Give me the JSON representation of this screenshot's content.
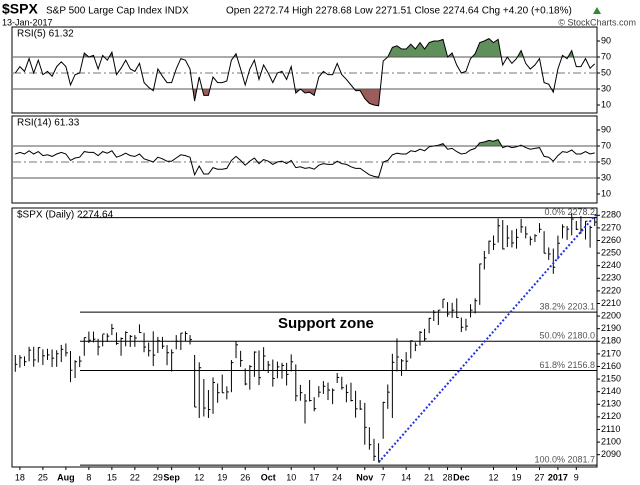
{
  "header": {
    "symbol": "$SPX",
    "name": "S&P 500 Large Cap Index INDX",
    "date": "13-Jan-2017",
    "quote": "Open 2272.74 High 2278.68 Low 2271.51 Close 2274.64 Chg +4.20 (+0.18%)",
    "credit": "© StockCharts.com"
  },
  "chart_data": [
    {
      "type": "line",
      "title": "RSI(5) 61.32",
      "color": "#000000",
      "ylim": [
        0,
        100
      ],
      "yticks": [
        90,
        70,
        50,
        30,
        10
      ],
      "overbought": 70,
      "midline": 50,
      "oversold": 30,
      "overbought_color": "#5f8f5a",
      "oversold_color": "#9b5c5a",
      "values": [
        50,
        58,
        52,
        68,
        50,
        66,
        48,
        52,
        46,
        58,
        64,
        58,
        35,
        48,
        50,
        75,
        70,
        72,
        55,
        72,
        66,
        76,
        48,
        56,
        66,
        55,
        52,
        62,
        38,
        32,
        28,
        55,
        46,
        38,
        38,
        55,
        68,
        66,
        55,
        15,
        45,
        22,
        22,
        45,
        38,
        38,
        40,
        66,
        74,
        55,
        35,
        55,
        66,
        42,
        60,
        50,
        38,
        50,
        52,
        42,
        58,
        25,
        30,
        25,
        26,
        22,
        45,
        52,
        48,
        48,
        62,
        48,
        42,
        35,
        28,
        28,
        18,
        12,
        10,
        9,
        65,
        70,
        82,
        84,
        80,
        80,
        86,
        80,
        88,
        80,
        88,
        90,
        90,
        92,
        70,
        75,
        60,
        50,
        52,
        68,
        74,
        88,
        90,
        93,
        88,
        92,
        60,
        70,
        62,
        68,
        78,
        62,
        55,
        60,
        68,
        38,
        36,
        26,
        55,
        72,
        68,
        78,
        58,
        58,
        68,
        56,
        61.32
      ]
    },
    {
      "type": "line",
      "title": "RSI(14) 61.33",
      "color": "#000000",
      "ylim": [
        0,
        100
      ],
      "yticks": [
        90,
        70,
        50,
        30,
        10
      ],
      "overbought": 70,
      "midline": 50,
      "oversold": 30,
      "overbought_color": "#5f8f5a",
      "oversold_color": "#9b5c5a",
      "values": [
        60,
        62,
        60,
        64,
        60,
        63,
        58,
        59,
        57,
        60,
        62,
        60,
        52,
        55,
        56,
        63,
        62,
        62,
        58,
        63,
        61,
        64,
        56,
        58,
        61,
        58,
        57,
        60,
        54,
        52,
        50,
        56,
        54,
        51,
        51,
        55,
        59,
        58,
        56,
        34,
        45,
        35,
        35,
        43,
        41,
        41,
        42,
        52,
        57,
        52,
        46,
        51,
        55,
        48,
        53,
        51,
        47,
        50,
        51,
        48,
        52,
        43,
        44,
        42,
        43,
        41,
        46,
        48,
        47,
        47,
        51,
        48,
        47,
        44,
        42,
        42,
        38,
        34,
        32,
        31,
        50,
        52,
        59,
        61,
        60,
        60,
        64,
        63,
        66,
        64,
        69,
        70,
        71,
        73,
        66,
        67,
        63,
        60,
        61,
        65,
        67,
        74,
        75,
        77,
        76,
        78,
        68,
        70,
        68,
        69,
        71,
        68,
        66,
        67,
        68,
        57,
        56,
        51,
        58,
        63,
        62,
        65,
        60,
        60,
        63,
        60,
        61.33
      ]
    },
    {
      "type": "hlc",
      "title": "$SPX (Daily) 2274.64",
      "color": "#000000",
      "ylim": [
        2081,
        2285
      ],
      "yticks": [
        2280,
        2270,
        2260,
        2250,
        2240,
        2230,
        2220,
        2210,
        2200,
        2190,
        2180,
        2170,
        2160,
        2150,
        2140,
        2130,
        2120,
        2110,
        2100,
        2090
      ],
      "categories": [
        null,
        "18",
        null,
        null,
        null,
        null,
        "25",
        null,
        null,
        null,
        null,
        "Aug",
        null,
        null,
        null,
        null,
        "8",
        null,
        null,
        null,
        null,
        "15",
        null,
        null,
        null,
        null,
        "22",
        null,
        null,
        null,
        null,
        "29",
        null,
        null,
        "Sep",
        null,
        null,
        null,
        null,
        null,
        "12",
        null,
        null,
        null,
        null,
        "19",
        null,
        null,
        null,
        null,
        "26",
        null,
        null,
        null,
        null,
        "Oct",
        null,
        null,
        null,
        null,
        "10",
        null,
        null,
        null,
        null,
        "17",
        null,
        null,
        null,
        null,
        "24",
        null,
        null,
        null,
        null,
        null,
        "Nov",
        null,
        null,
        null,
        "7",
        null,
        null,
        null,
        null,
        "14",
        null,
        null,
        null,
        null,
        "21",
        null,
        null,
        null,
        "28",
        null,
        null,
        "Dec",
        null,
        null,
        null,
        null,
        null,
        null,
        "12",
        null,
        null,
        null,
        null,
        "19",
        null,
        null,
        null,
        null,
        "27",
        null,
        null,
        null,
        "2017",
        null,
        null,
        null,
        "9",
        null,
        null,
        null,
        null
      ],
      "high": [
        2169.1,
        2169.0,
        2168.0,
        2175.6,
        2175.6,
        2175.1,
        2173.6,
        2174.0,
        2173.5,
        2172.9,
        2177.1,
        2178.3,
        2172.3,
        2165.0,
        2168.2,
        2182.9,
        2187.7,
        2187.7,
        2182.0,
        2185.4,
        2186.3,
        2193.8,
        2187.0,
        2183.0,
        2187.9,
        2185.0,
        2184.9,
        2193.4,
        2186.7,
        2179.0,
        2187.9,
        2183.5,
        2183.5,
        2177.0,
        2173.6,
        2184.9,
        2186.6,
        2187.9,
        2184.9,
        2169.1,
        2163.3,
        2150.0,
        2141.3,
        2151.3,
        2146.5,
        2153.6,
        2144.2,
        2165.1,
        2179.99,
        2172.4,
        2158.5,
        2161.1,
        2172.0,
        2172.7,
        2175.3,
        2164.4,
        2165.5,
        2163.9,
        2162.9,
        2162.9,
        2169.6,
        2161.6,
        2145.4,
        2138.2,
        2149.2,
        2135.6,
        2144.4,
        2148.4,
        2147.2,
        2142.6,
        2154.8,
        2151.9,
        2145.7,
        2147.1,
        2140.7,
        2133.3,
        2131.1,
        2111.8,
        2102.6,
        2099.1,
        2132.0,
        2145.7,
        2170.1,
        2182.3,
        2165.9,
        2171.4,
        2180.8,
        2179.2,
        2188.1,
        2189.9,
        2198.7,
        2204.8,
        2204.7,
        2213.4,
        2211.1,
        2210.5,
        2214.1,
        2198.8,
        2197.9,
        2209.4,
        2214.1,
        2241.6,
        2251.7,
        2259.8,
        2264.0,
        2277.5,
        2276.2,
        2272.1,
        2268.1,
        2269.3,
        2277.1,
        2271.2,
        2263.3,
        2265.0,
        2273.8,
        2267.4,
        2254.5,
        2253.6,
        2263.9,
        2272.8,
        2271.5,
        2282.1,
        2275.5,
        2279.3,
        2275.3,
        2271.8,
        2278.7
      ],
      "low": [
        2155.8,
        2159.1,
        2160.4,
        2164.1,
        2159.8,
        2163.2,
        2161.2,
        2165.2,
        2159.6,
        2159.7,
        2163.5,
        2168.0,
        2147.6,
        2150.8,
        2159.5,
        2168.5,
        2178.6,
        2179.1,
        2168.8,
        2175.9,
        2179.4,
        2184.9,
        2177.2,
        2168.5,
        2176.0,
        2175.5,
        2175.6,
        2186.8,
        2171.3,
        2168.0,
        2160.4,
        2170.7,
        2174.0,
        2161.0,
        2156.0,
        2173.6,
        2173.1,
        2180.0,
        2177.5,
        2127.8,
        2119.1,
        2120.3,
        2119.1,
        2122.4,
        2131.2,
        2139.1,
        2133.9,
        2139.6,
        2166.6,
        2159.7,
        2145.0,
        2141.6,
        2151.8,
        2145.2,
        2156.5,
        2154.8,
        2144.0,
        2150.6,
        2150.3,
        2144.9,
        2156.1,
        2132.4,
        2132.8,
        2114.7,
        2132.2,
        2124.4,
        2135.5,
        2138.2,
        2133.4,
        2130.1,
        2146.9,
        2141.6,
        2131.6,
        2132.2,
        2119.4,
        2125.5,
        2097.9,
        2094.0,
        2085.0,
        2083.8,
        2102.6,
        2126.4,
        2119.1,
        2156.1,
        2152.5,
        2156.4,
        2166.4,
        2172.2,
        2176.6,
        2180.0,
        2186.4,
        2196.0,
        2192.9,
        2206.3,
        2199.4,
        2198.6,
        2198.5,
        2187.4,
        2188.4,
        2199.0,
        2202.1,
        2208.9,
        2237.0,
        2249.2,
        2252.4,
        2258.3,
        2252.9,
        2254.8,
        2254.5,
        2253.5,
        2266.1,
        2261.7,
        2256.1,
        2258.8,
        2266.2,
        2249.8,
        2244.6,
        2233.6,
        2245.1,
        2261.6,
        2260.5,
        2264.1,
        2268.4,
        2265.3,
        2260.8,
        2254.3,
        2271.5
      ],
      "close": [
        2161.7,
        2166.9,
        2163.8,
        2173.0,
        2165.2,
        2175.0,
        2168.5,
        2169.2,
        2166.6,
        2170.1,
        2173.6,
        2170.8,
        2157.0,
        2163.8,
        2164.3,
        2182.9,
        2180.9,
        2181.7,
        2175.5,
        2185.8,
        2184.1,
        2190.2,
        2178.2,
        2182.2,
        2187.0,
        2183.9,
        2182.6,
        2186.9,
        2175.4,
        2172.5,
        2169.0,
        2180.4,
        2176.1,
        2170.9,
        2170.9,
        2180.0,
        2186.5,
        2186.2,
        2181.3,
        2127.8,
        2159.0,
        2127.0,
        2125.8,
        2147.3,
        2139.2,
        2139.1,
        2139.8,
        2163.1,
        2177.2,
        2164.7,
        2146.1,
        2159.9,
        2171.4,
        2151.1,
        2168.3,
        2161.2,
        2150.5,
        2159.7,
        2160.8,
        2153.7,
        2163.7,
        2136.7,
        2139.2,
        2132.6,
        2133.0,
        2126.5,
        2139.6,
        2144.3,
        2141.3,
        2141.2,
        2151.3,
        2143.2,
        2139.4,
        2133.0,
        2126.4,
        2126.2,
        2111.7,
        2097.9,
        2088.7,
        2085.2,
        2131.5,
        2139.6,
        2163.3,
        2167.5,
        2164.5,
        2164.2,
        2180.4,
        2176.9,
        2187.1,
        2181.9,
        2198.2,
        2202.9,
        2204.7,
        2213.4,
        2201.7,
        2204.7,
        2198.8,
        2191.1,
        2192.0,
        2204.7,
        2212.2,
        2241.4,
        2246.2,
        2259.5,
        2257.0,
        2271.7,
        2253.3,
        2262.0,
        2258.1,
        2262.5,
        2270.8,
        2265.2,
        2261.0,
        2263.8,
        2268.9,
        2249.9,
        2249.3,
        2238.8,
        2257.8,
        2270.8,
        2269.0,
        2277.0,
        2268.9,
        2268.9,
        2275.3,
        2270.4,
        2274.6
      ],
      "fib_levels": [
        {
          "value": 2278.2,
          "label": "0.0% 2278.2"
        },
        {
          "value": 2203.1,
          "label": "38.2% 2203.1"
        },
        {
          "value": 2180.0,
          "label": "50.0% 2180.0"
        },
        {
          "value": 2156.8,
          "label": "61.8% 2156.8"
        },
        {
          "value": 2081.7,
          "label": "100.0% 2081.7"
        }
      ],
      "support_label": "Support zone",
      "trendline": {
        "values": [
          2083.8,
          2281.5
        ],
        "color": "#2233dd"
      }
    }
  ]
}
